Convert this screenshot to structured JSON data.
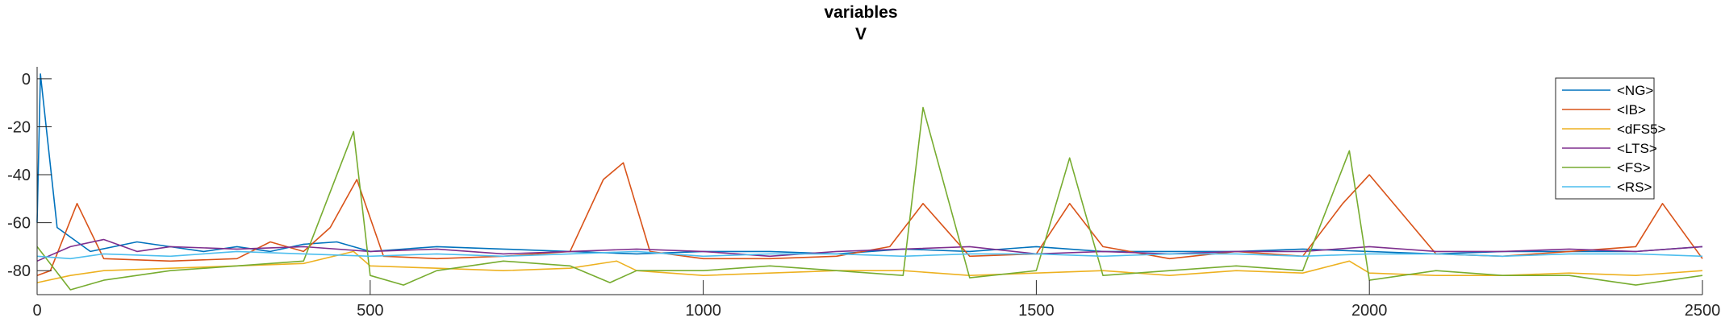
{
  "chart_data": {
    "type": "line",
    "title": "variables",
    "subtitle": "V",
    "xlabel": "",
    "ylabel": "",
    "xlim": [
      0,
      2500
    ],
    "ylim": [
      -90,
      5
    ],
    "x_ticks": [
      0,
      500,
      1000,
      1500,
      2000,
      2500
    ],
    "y_ticks": [
      0,
      -20,
      -40,
      -60,
      -80
    ],
    "grid": false,
    "legend_position": "top-right",
    "series": [
      {
        "name": "<NG>",
        "color": "#0072BD",
        "x": [
          0,
          5,
          30,
          80,
          150,
          250,
          300,
          350,
          400,
          450,
          500,
          600,
          700,
          800,
          900,
          1000,
          1100,
          1200,
          1300,
          1400,
          1500,
          1600,
          1700,
          1800,
          1900,
          2000,
          2100,
          2200,
          2300,
          2400,
          2500
        ],
        "y": [
          -60,
          2,
          -62,
          -72,
          -68,
          -72,
          -70,
          -72,
          -69,
          -68,
          -72,
          -70,
          -71,
          -72,
          -73,
          -72,
          -72,
          -73,
          -71,
          -72,
          -70,
          -72,
          -72,
          -72,
          -71,
          -72,
          -73,
          -72,
          -72,
          -72,
          -70
        ]
      },
      {
        "name": "<IB>",
        "color": "#D95319",
        "x": [
          0,
          20,
          60,
          100,
          200,
          300,
          350,
          400,
          440,
          480,
          520,
          600,
          700,
          800,
          850,
          880,
          920,
          1000,
          1100,
          1200,
          1280,
          1330,
          1400,
          1500,
          1550,
          1600,
          1700,
          1800,
          1900,
          1960,
          2000,
          2100,
          2200,
          2300,
          2400,
          2440,
          2500
        ],
        "y": [
          -82,
          -80,
          -52,
          -75,
          -76,
          -75,
          -68,
          -72,
          -62,
          -42,
          -74,
          -75,
          -74,
          -72,
          -42,
          -35,
          -72,
          -75,
          -75,
          -74,
          -70,
          -52,
          -74,
          -73,
          -52,
          -70,
          -75,
          -72,
          -74,
          -52,
          -40,
          -73,
          -74,
          -72,
          -70,
          -52,
          -75
        ]
      },
      {
        "name": "<dFS5>",
        "color": "#EDB120",
        "x": [
          0,
          50,
          100,
          200,
          300,
          400,
          475,
          500,
          600,
          700,
          800,
          870,
          900,
          1000,
          1100,
          1200,
          1300,
          1400,
          1500,
          1600,
          1700,
          1800,
          1900,
          1970,
          2000,
          2100,
          2200,
          2300,
          2400,
          2500
        ],
        "y": [
          -85,
          -82,
          -80,
          -79,
          -78,
          -77,
          -72,
          -78,
          -79,
          -80,
          -79,
          -76,
          -80,
          -82,
          -81,
          -80,
          -80,
          -82,
          -81,
          -80,
          -82,
          -80,
          -81,
          -76,
          -81,
          -82,
          -82,
          -81,
          -82,
          -80
        ]
      },
      {
        "name": "<LTS>",
        "color": "#7E2F8E",
        "x": [
          0,
          50,
          100,
          150,
          200,
          300,
          400,
          500,
          600,
          700,
          800,
          900,
          1000,
          1100,
          1200,
          1300,
          1400,
          1500,
          1600,
          1700,
          1800,
          1900,
          2000,
          2100,
          2200,
          2300,
          2400,
          2500
        ],
        "y": [
          -76,
          -70,
          -67,
          -72,
          -70,
          -71,
          -70,
          -72,
          -71,
          -73,
          -72,
          -71,
          -72,
          -74,
          -72,
          -71,
          -70,
          -73,
          -72,
          -73,
          -72,
          -72,
          -70,
          -72,
          -72,
          -71,
          -72,
          -70
        ]
      },
      {
        "name": "<FS>",
        "color": "#77AC30",
        "x": [
          0,
          50,
          100,
          200,
          300,
          400,
          475,
          500,
          550,
          600,
          700,
          800,
          860,
          900,
          1000,
          1100,
          1200,
          1300,
          1330,
          1400,
          1500,
          1550,
          1600,
          1700,
          1800,
          1900,
          1970,
          2000,
          2100,
          2200,
          2300,
          2400,
          2500
        ],
        "y": [
          -70,
          -88,
          -84,
          -80,
          -78,
          -76,
          -22,
          -82,
          -86,
          -80,
          -76,
          -78,
          -85,
          -80,
          -80,
          -78,
          -80,
          -82,
          -12,
          -83,
          -80,
          -33,
          -82,
          -80,
          -78,
          -80,
          -30,
          -84,
          -80,
          -82,
          -82,
          -86,
          -82
        ]
      },
      {
        "name": "<RS>",
        "color": "#4DBEEE",
        "x": [
          0,
          50,
          100,
          200,
          300,
          400,
          500,
          600,
          700,
          800,
          900,
          1000,
          1100,
          1200,
          1300,
          1400,
          1500,
          1600,
          1700,
          1800,
          1900,
          2000,
          2100,
          2200,
          2300,
          2400,
          2500
        ],
        "y": [
          -74,
          -75,
          -73,
          -74,
          -72,
          -73,
          -74,
          -73,
          -74,
          -73,
          -72,
          -74,
          -73,
          -73,
          -74,
          -73,
          -73,
          -74,
          -73,
          -73,
          -74,
          -73,
          -73,
          -74,
          -73,
          -73,
          -74
        ]
      }
    ]
  }
}
